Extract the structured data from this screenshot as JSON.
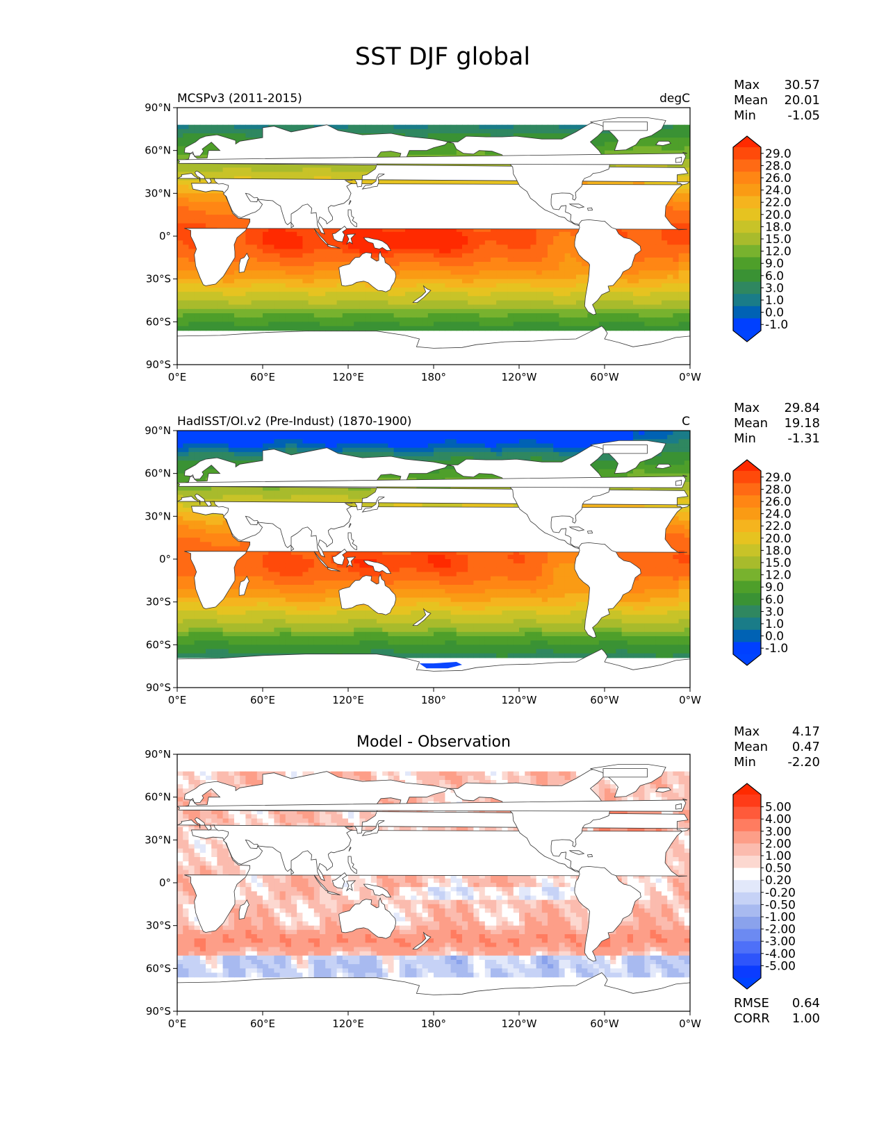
{
  "figure_title": "SST DJF global",
  "lon_ticks": [
    "0°E",
    "60°E",
    "120°E",
    "180°",
    "120°W",
    "60°W",
    "0°W"
  ],
  "lat_ticks": [
    "90°N",
    "60°N",
    "30°N",
    "0°",
    "30°S",
    "60°S",
    "90°S"
  ],
  "chart_data": [
    {
      "type": "heatmap",
      "title_left": "MCSPv3 (2011-2015)",
      "title_right": "degC",
      "stats": [
        {
          "label": "Max",
          "value": "30.57"
        },
        {
          "label": "Mean",
          "value": "20.01"
        },
        {
          "label": "Min",
          "value": "-1.05"
        }
      ],
      "colorbar_labels": [
        "29.0",
        "28.0",
        "26.0",
        "24.0",
        "22.0",
        "20.0",
        "18.0",
        "15.0",
        "12.0",
        "9.0",
        "6.0",
        "3.0",
        "1.0",
        "0.0",
        "-1.0"
      ],
      "colorbar_colors": {
        "over": "#ff2a00",
        "bins": [
          "#ff4a0a",
          "#ff6a14",
          "#ff8614",
          "#fa9b14",
          "#f5b41e",
          "#e6c320",
          "#c8c328",
          "#a8bb2c",
          "#78b22e",
          "#4e9f2a",
          "#3a9234",
          "#2f8760",
          "#1a7c88",
          "#0062b4",
          "#0040ff"
        ],
        "under": "#0044ff"
      },
      "data_range": {
        "max": 30.57,
        "mean": 20.01,
        "min": -1.05
      },
      "xlim": [
        "0°E",
        "0°W"
      ],
      "ylim": [
        "90°S",
        "90°N"
      ]
    },
    {
      "type": "heatmap",
      "title_left": "HadISST/OI.v2 (Pre-Indust) (1870-1900)",
      "title_right": "C",
      "stats": [
        {
          "label": "Max",
          "value": "29.84"
        },
        {
          "label": "Mean",
          "value": "19.18"
        },
        {
          "label": "Min",
          "value": "-1.31"
        }
      ],
      "colorbar_labels": [
        "29.0",
        "28.0",
        "26.0",
        "24.0",
        "22.0",
        "20.0",
        "18.0",
        "15.0",
        "12.0",
        "9.0",
        "6.0",
        "3.0",
        "1.0",
        "0.0",
        "-1.0"
      ],
      "colorbar_colors": {
        "over": "#ff2a00",
        "bins": [
          "#ff4a0a",
          "#ff6a14",
          "#ff8614",
          "#fa9b14",
          "#f5b41e",
          "#e6c320",
          "#c8c328",
          "#a8bb2c",
          "#78b22e",
          "#4e9f2a",
          "#3a9234",
          "#2f8760",
          "#1a7c88",
          "#0062b4",
          "#0040ff"
        ],
        "under": "#0044ff"
      },
      "data_range": {
        "max": 29.84,
        "mean": 19.18,
        "min": -1.31
      },
      "xlim": [
        "0°E",
        "0°W"
      ],
      "ylim": [
        "90°S",
        "90°N"
      ]
    },
    {
      "type": "heatmap",
      "title_center": "Model - Observation",
      "stats": [
        {
          "label": "Max",
          "value": "4.17"
        },
        {
          "label": "Mean",
          "value": "0.47"
        },
        {
          "label": "Min",
          "value": "-2.20"
        }
      ],
      "colorbar_labels": [
        "5.00",
        "4.00",
        "3.00",
        "2.00",
        "1.00",
        "0.50",
        "0.20",
        "-0.20",
        "-0.50",
        "-1.00",
        "-2.00",
        "-3.00",
        "-4.00",
        "-5.00"
      ],
      "colorbar_colors": {
        "over": "#ff2a00",
        "bins": [
          "#ff3b18",
          "#ff5a3a",
          "#ff7c60",
          "#fd9e88",
          "#fbbbae",
          "#fcd8d0",
          "#ffffff",
          "#e2e8fa",
          "#c6d2f6",
          "#a8baf0",
          "#8aa2ec",
          "#6c8af2",
          "#4e70f8",
          "#2e55fb",
          "#0b3cff"
        ],
        "under": "#0044ff"
      },
      "data_range": {
        "max": 4.17,
        "mean": 0.47,
        "min": -2.2
      },
      "footer_stats": [
        {
          "label": "RMSE",
          "value": "0.64"
        },
        {
          "label": "CORR",
          "value": "1.00"
        }
      ],
      "xlim": [
        "0°E",
        "0°W"
      ],
      "ylim": [
        "90°S",
        "90°N"
      ]
    }
  ]
}
